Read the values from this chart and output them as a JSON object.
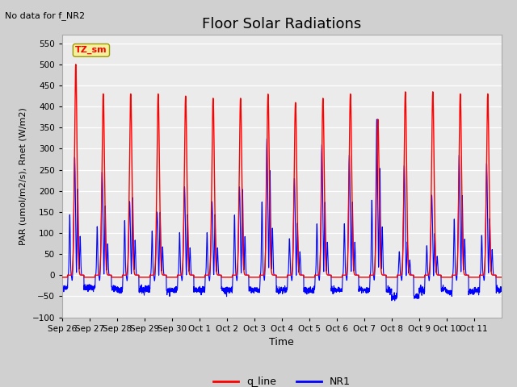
{
  "title": "Floor Solar Radiations",
  "top_left_text": "No data for f_NR2",
  "legend_box_text": "TZ_sm",
  "xlabel": "Time",
  "ylabel": "PAR (umol/m2/s), Rnet (W/m2)",
  "ylim": [
    -100,
    570
  ],
  "yticks": [
    -100,
    -50,
    0,
    50,
    100,
    150,
    200,
    250,
    300,
    350,
    400,
    450,
    500,
    550
  ],
  "xtick_labels": [
    "Sep 26",
    "Sep 27",
    "Sep 28",
    "Sep 29",
    "Sep 30",
    "Oct 1",
    "Oct 2",
    "Oct 3",
    "Oct 4",
    "Oct 5",
    "Oct 6",
    "Oct 7",
    "Oct 8",
    "Oct 9",
    "Oct 10",
    "Oct 11"
  ],
  "q_line_color": "red",
  "NR1_color": "blue",
  "fig_facecolor": "#d0d0d0",
  "ax_facecolor": "#ebebeb",
  "title_fontsize": 13,
  "num_days": 16,
  "day_peak_q": [
    500,
    430,
    430,
    430,
    425,
    420,
    420,
    430,
    410,
    420,
    430,
    370,
    435,
    435,
    430,
    430
  ],
  "day_peak_NR1_main": [
    280,
    245,
    175,
    150,
    210,
    175,
    210,
    325,
    230,
    310,
    285,
    370,
    260,
    190,
    285,
    265
  ],
  "day_peak_NR1_sub": [
    205,
    165,
    185,
    150,
    145,
    145,
    205,
    250,
    125,
    175,
    175,
    255,
    80,
    100,
    190,
    135
  ],
  "night_NR1": [
    -30,
    -30,
    -35,
    -35,
    -35,
    -35,
    -35,
    -35,
    -35,
    -35,
    -35,
    -35,
    -50,
    -35,
    -40,
    -35
  ],
  "q_night_val": -5,
  "pts_per_day": 200
}
